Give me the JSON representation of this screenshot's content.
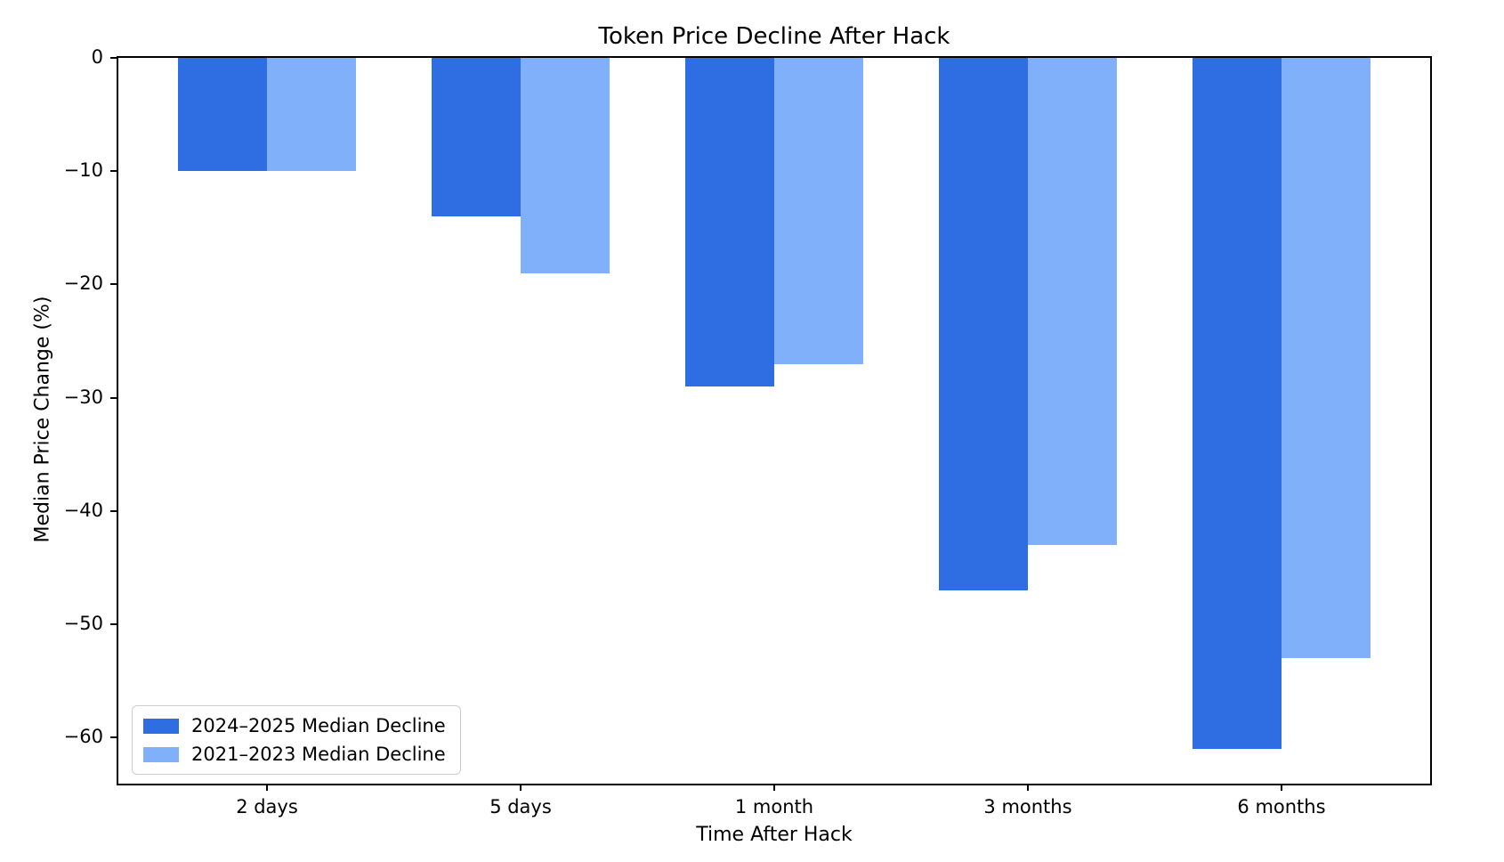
{
  "chart_data": {
    "type": "bar",
    "title": "Token Price Decline After Hack",
    "xlabel": "Time After Hack",
    "ylabel": "Median Price Change (%)",
    "categories": [
      "2 days",
      "5 days",
      "1 month",
      "3 months",
      "6 months"
    ],
    "series": [
      {
        "name": "2024–2025 Median Decline",
        "color": "#2E6EE2",
        "values": [
          -10,
          -14,
          -29,
          -47,
          -61
        ]
      },
      {
        "name": "2021–2023 Median Decline",
        "color": "#80B0FA",
        "values": [
          -10,
          -19,
          -27,
          -43,
          -53
        ]
      }
    ],
    "yticks": [
      0,
      -10,
      -20,
      -30,
      -40,
      -50,
      -60
    ],
    "ytick_labels": [
      "0",
      "−10",
      "−20",
      "−30",
      "−40",
      "−50",
      "−60"
    ],
    "ylim": [
      -64.05,
      0
    ],
    "grid": false,
    "legend_position": "lower-left",
    "bar_width_units": 0.35,
    "background_color": "#ffffff",
    "axis_color": "#000000"
  }
}
